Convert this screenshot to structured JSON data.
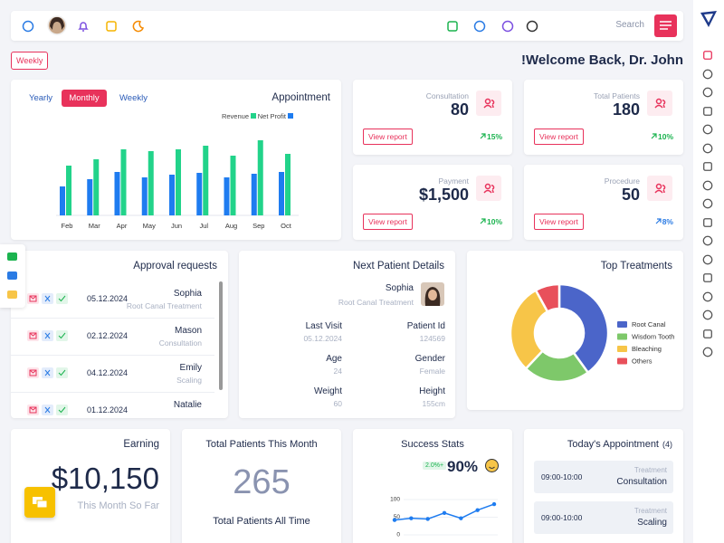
{
  "topbar": {
    "search": "Search"
  },
  "filter": "Weekly",
  "welcome": "!Welcome Back, Dr. John",
  "stats": [
    {
      "label": "Consultation",
      "value": "80",
      "button": "View report",
      "change": "15%",
      "color": "#1bb34f"
    },
    {
      "label": "Total Patients",
      "value": "180",
      "button": "View report",
      "change": "10%",
      "color": "#1bb34f"
    },
    {
      "label": "Payment",
      "value": "$1,500",
      "button": "View report",
      "change": "10%",
      "color": "#1bb34f"
    },
    {
      "label": "Procedure",
      "value": "50",
      "button": "View report",
      "change": "8%",
      "color": "#2a7be4"
    }
  ],
  "approvals": {
    "title": "Approval requests",
    "rows": [
      {
        "date": "05.12.2024",
        "name": "Sophia",
        "treatment": "Root Canal Treatment"
      },
      {
        "date": "02.12.2024",
        "name": "Mason",
        "treatment": "Consultation"
      },
      {
        "date": "04.12.2024",
        "name": "Emily",
        "treatment": "Scaling"
      },
      {
        "date": "01.12.2024",
        "name": "Natalie"
      }
    ]
  },
  "next_patient": {
    "title": "Next Patient Details",
    "name": "Sophia",
    "treatment": "Root Canal Treatment",
    "fields": [
      {
        "label": "Last Visit",
        "value": "05.12.2024"
      },
      {
        "label": "Patient Id",
        "value": "124569"
      },
      {
        "label": "Age",
        "value": "24"
      },
      {
        "label": "Gender",
        "value": "Female"
      },
      {
        "label": "Weight",
        "value": "60"
      },
      {
        "label": "Height",
        "value": "155cm"
      }
    ]
  },
  "earning": {
    "title": "Earning",
    "value": "$10,150",
    "note": "This Month So Far"
  },
  "patients": {
    "title": "Total Patients This Month",
    "value": "265",
    "note": "Total Patients All Time"
  },
  "today": {
    "title": "Today's Appointment",
    "count": "(4)",
    "rows": [
      {
        "time": "09:00-10:00",
        "label": "Treatment",
        "name": "Consultation"
      },
      {
        "time": "09:00-10:00",
        "label": "Treatment",
        "name": "Scaling"
      }
    ]
  },
  "chart_data": [
    {
      "type": "bar",
      "title": "Appointment",
      "tabs": [
        "Yearly",
        "Monthly",
        "Weekly"
      ],
      "categories": [
        "Feb",
        "Mar",
        "Apr",
        "May",
        "Jun",
        "Jul",
        "Aug",
        "Sep",
        "Oct"
      ],
      "series": [
        {
          "name": "Revenue",
          "color": "#22d38a",
          "values": [
            55,
            62,
            73,
            71,
            73,
            77,
            66,
            83,
            68
          ]
        },
        {
          "name": "Net Profit",
          "color": "#1e7cf0",
          "values": [
            32,
            40,
            48,
            42,
            45,
            47,
            42,
            46,
            48
          ]
        }
      ],
      "ylim": [
        0,
        100
      ]
    },
    {
      "type": "pie",
      "title": "Top Treatments",
      "categories": [
        "Root Canal",
        "Wisdom Tooth",
        "Bleaching",
        "Others"
      ],
      "values": [
        40,
        22,
        30,
        8
      ],
      "colors": [
        "#4b65c9",
        "#7ec86a",
        "#f7c548",
        "#e8505b"
      ],
      "donut": true
    },
    {
      "type": "line",
      "title": "Success Stats",
      "badge": "2.0%+",
      "headline": "90%",
      "categories": [
        null,
        null,
        null,
        null,
        null,
        null,
        null
      ],
      "values": [
        42,
        47,
        45,
        62,
        47,
        70,
        87
      ],
      "color": "#1e7cf0",
      "ylim": [
        0,
        100
      ],
      "yticks": [
        0,
        50,
        100
      ],
      "grid": true
    }
  ]
}
